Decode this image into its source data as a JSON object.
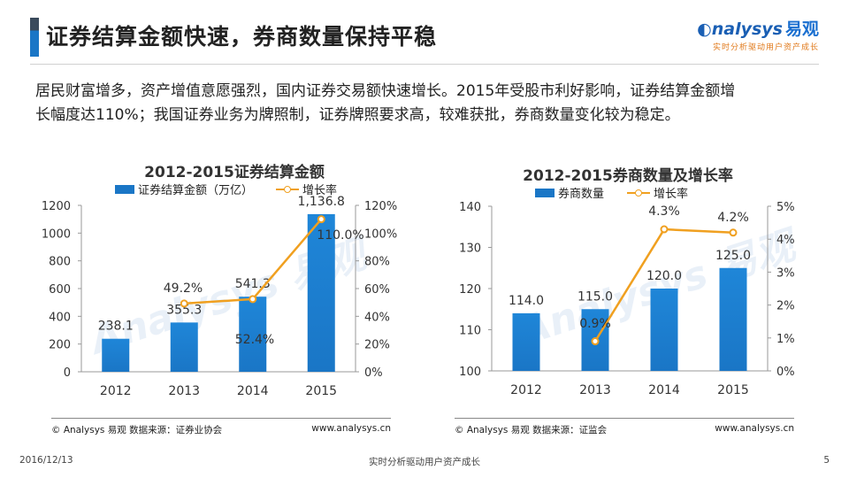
{
  "header": {
    "title": "证券结算金额快速，券商数量保持平稳",
    "logo_name": "nalysys",
    "logo_cn": "易观",
    "logo_slogan": "实时分析驱动用户资产成长"
  },
  "intro": {
    "line1": "居民财富增多，资产增值意愿强烈，国内证券交易额快速增长。2015年受股市利好影响，证券结算金额增",
    "line2": "长幅度达110%；我国证券业务为牌照制，证券牌照要求高，较难获批，券商数量变化较为稳定。"
  },
  "colors": {
    "bar": "#1a76c6",
    "line": "#f0a020",
    "accent": "#1a5fb4"
  },
  "chart_data": [
    {
      "type": "bar",
      "title": "2012-2015证券结算金额",
      "categories": [
        "2012",
        "2013",
        "2014",
        "2015"
      ],
      "series": [
        {
          "name": "证券结算金额（万亿）",
          "kind": "bar",
          "axis": "left",
          "values": [
            238.1,
            355.3,
            541.3,
            1136.8
          ],
          "labels": [
            "238.1",
            "355.3",
            "541.3",
            "1,136.8"
          ]
        },
        {
          "name": "增长率",
          "kind": "line",
          "axis": "right",
          "values": [
            null,
            49.2,
            52.4,
            110.0
          ],
          "labels": [
            "",
            "49.2%",
            "52.4%",
            "110.0%"
          ]
        }
      ],
      "ylim": [
        0,
        1200
      ],
      "yticks": [
        "0",
        "200",
        "400",
        "600",
        "800",
        "1000",
        "1200"
      ],
      "y2lim": [
        0,
        120
      ],
      "y2ticks": [
        "0%",
        "20%",
        "40%",
        "60%",
        "80%",
        "100%",
        "120%"
      ],
      "footer_left": "© Analysys 易观   数据来源：证券业协会",
      "footer_right": "www.analysys.cn"
    },
    {
      "type": "bar",
      "title": "2012-2015券商数量及增长率",
      "categories": [
        "2012",
        "2013",
        "2014",
        "2015"
      ],
      "series": [
        {
          "name": "券商数量",
          "kind": "bar",
          "axis": "left",
          "values": [
            114.0,
            115.0,
            120.0,
            125.0
          ],
          "labels": [
            "114.0",
            "115.0",
            "120.0",
            "125.0"
          ]
        },
        {
          "name": "增长率",
          "kind": "line",
          "axis": "right",
          "values": [
            null,
            0.9,
            4.3,
            4.2
          ],
          "labels": [
            "",
            "0.9%",
            "4.3%",
            "4.2%"
          ]
        }
      ],
      "ylim": [
        100,
        140
      ],
      "yticks": [
        "100",
        "110",
        "120",
        "130",
        "140"
      ],
      "y2lim": [
        0,
        5
      ],
      "y2ticks": [
        "0%",
        "1%",
        "2%",
        "3%",
        "4%",
        "5%"
      ],
      "footer_left": "© Analysys 易观   数据来源：证监会",
      "footer_right": "www.analysys.cn"
    }
  ],
  "footer": {
    "date": "2016/12/13",
    "center": "实时分析驱动用户资产成长",
    "page": "5"
  }
}
